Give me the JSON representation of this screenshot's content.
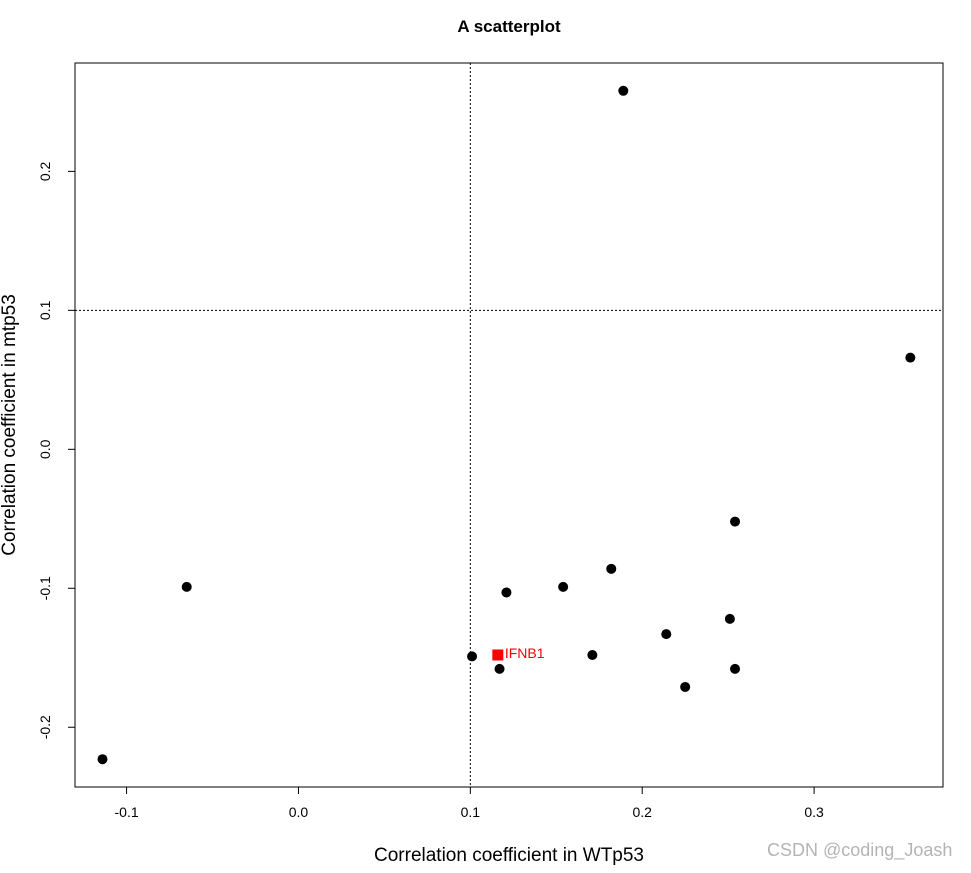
{
  "chart_data": {
    "type": "scatter",
    "title": "A scatterplot",
    "xlabel": "Correlation coefficient in WTp53",
    "ylabel": "Correlation coefficient in mtp53",
    "xlim": [
      -0.13,
      0.375
    ],
    "ylim": [
      -0.243,
      0.278
    ],
    "x_ticks": [
      -0.1,
      0.0,
      0.1,
      0.2,
      0.3
    ],
    "x_tick_labels": [
      "-0.1",
      "0.0",
      "0.1",
      "0.2",
      "0.3"
    ],
    "y_ticks": [
      -0.2,
      -0.1,
      0.0,
      0.1,
      0.2
    ],
    "y_tick_labels": [
      "-0.2",
      "-0.1",
      "0.0",
      "0.1",
      "0.2"
    ],
    "grid": false,
    "reference_lines": {
      "vertical_x": 0.1,
      "horizontal_y": 0.1,
      "style": "dotted"
    },
    "series": [
      {
        "color": "#000000",
        "marker": "circle",
        "points": [
          {
            "x": -0.114,
            "y": -0.223
          },
          {
            "x": -0.065,
            "y": -0.099
          },
          {
            "x": 0.101,
            "y": -0.149
          },
          {
            "x": 0.117,
            "y": -0.158
          },
          {
            "x": 0.121,
            "y": -0.103
          },
          {
            "x": 0.154,
            "y": -0.099
          },
          {
            "x": 0.171,
            "y": -0.148
          },
          {
            "x": 0.182,
            "y": -0.086
          },
          {
            "x": 0.189,
            "y": 0.258
          },
          {
            "x": 0.214,
            "y": -0.133
          },
          {
            "x": 0.225,
            "y": -0.171
          },
          {
            "x": 0.251,
            "y": -0.122
          },
          {
            "x": 0.254,
            "y": -0.052
          },
          {
            "x": 0.254,
            "y": -0.158
          },
          {
            "x": 0.356,
            "y": 0.066
          }
        ]
      },
      {
        "color": "#ff0000",
        "marker": "square",
        "points": [
          {
            "x": 0.116,
            "y": -0.148,
            "label": "IFNB1"
          }
        ]
      }
    ]
  },
  "watermark": {
    "text": "CSDN @coding_Joash"
  }
}
